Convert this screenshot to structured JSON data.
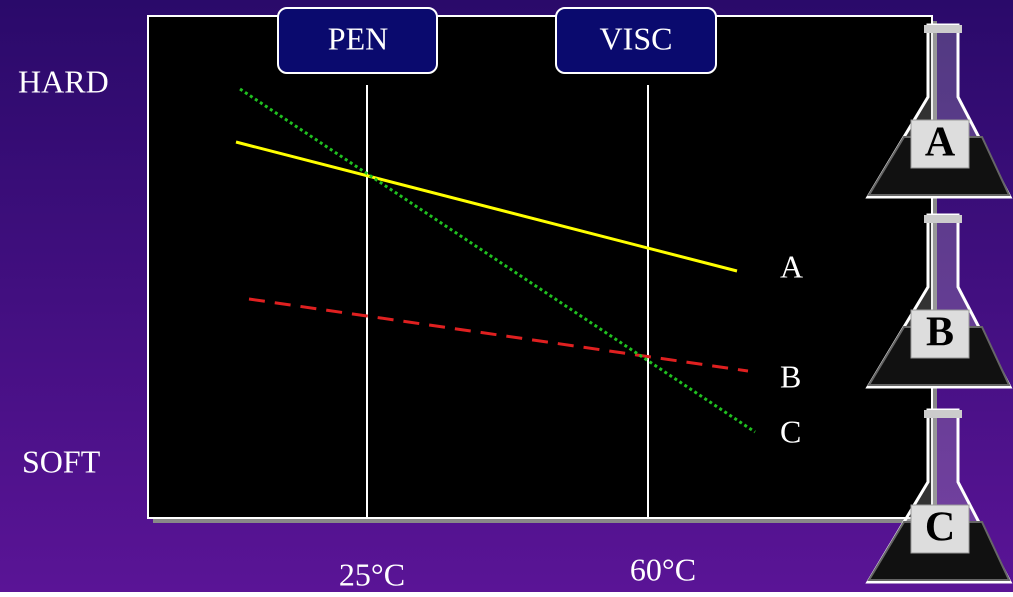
{
  "y_labels": {
    "top": "HARD",
    "bottom": "SOFT"
  },
  "columns": [
    {
      "label": "PEN",
      "temperature": "25°C"
    },
    {
      "label": "VISC",
      "temperature": "60°C"
    }
  ],
  "lines": [
    {
      "label": "A"
    },
    {
      "label": "B"
    },
    {
      "label": "C"
    }
  ],
  "flasks": [
    "A",
    "B",
    "C"
  ]
}
